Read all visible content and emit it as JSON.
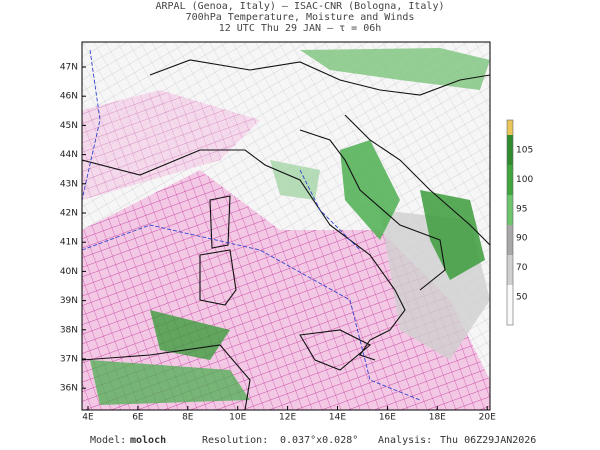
{
  "header": {
    "line1": "ARPAL (Genoa, Italy)  —  ISAC-CNR (Bologna, Italy)",
    "line2": "700hPa Temperature, Moisture and Winds",
    "line3": "12 UTC Thu 29 JAN  —  τ = 06h"
  },
  "map": {
    "lat_labels": [
      "47N",
      "46N",
      "45N",
      "44N",
      "43N",
      "42N",
      "41N",
      "40N",
      "39N",
      "38N",
      "37N",
      "36N"
    ],
    "lon_labels": [
      "4E",
      "6E",
      "8E",
      "10E",
      "12E",
      "14E",
      "16E",
      "18E",
      "20E"
    ]
  },
  "colorbar": {
    "labels": [
      "105",
      "100",
      "95",
      "90",
      "70",
      "50"
    ]
  },
  "footer": {
    "model_label": "Model:",
    "model": "moloch",
    "resolution_label": "Resolution:",
    "resolution": "0.037°x0.028°",
    "analysis_label": "Analysis:",
    "analysis": "Thu 06Z29JAN2026"
  }
}
